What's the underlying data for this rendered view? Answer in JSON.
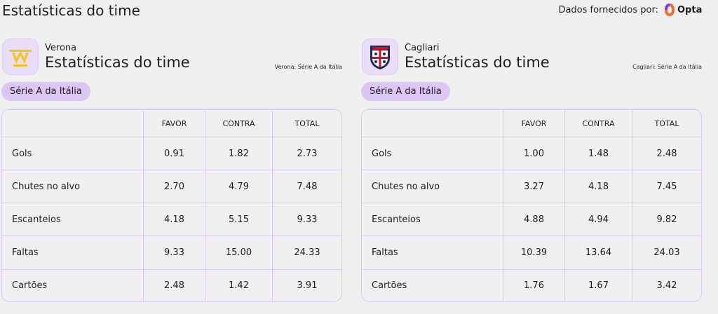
{
  "header": {
    "title": "Estatísticas do time",
    "provider": "Dados fornecidos por:",
    "provider_logo": "Opta"
  },
  "teams": [
    {
      "name": "Verona",
      "heading": "Estatísticas do time",
      "league_note": "Verona: Série A da Itália",
      "badge": "Série A da Itália",
      "table": {
        "columns": [
          "FAVOR",
          "CONTRA",
          "TOTAL"
        ],
        "rows": [
          [
            "Gols",
            "0.91",
            "1.82",
            "2.73"
          ],
          [
            "Chutes no alvo",
            "2.70",
            "4.79",
            "7.48"
          ],
          [
            "Escanteios",
            "4.18",
            "5.15",
            "9.33"
          ],
          [
            "Faltas",
            "9.33",
            "15.00",
            "24.33"
          ],
          [
            "Cartões",
            "2.48",
            "1.42",
            "3.91"
          ]
        ]
      }
    },
    {
      "name": "Cagliari",
      "heading": "Estatísticas do time",
      "league_note": "Cagliari: Série A da Itália",
      "badge": "Série A da Itália",
      "table": {
        "columns": [
          "FAVOR",
          "CONTRA",
          "TOTAL"
        ],
        "rows": [
          [
            "Gols",
            "1.00",
            "1.48",
            "2.48"
          ],
          [
            "Chutes no alvo",
            "3.27",
            "4.18",
            "7.45"
          ],
          [
            "Escanteios",
            "4.88",
            "4.94",
            "9.82"
          ],
          [
            "Faltas",
            "10.39",
            "13.64",
            "24.03"
          ],
          [
            "Cartões",
            "1.76",
            "1.67",
            "3.42"
          ]
        ]
      }
    }
  ]
}
